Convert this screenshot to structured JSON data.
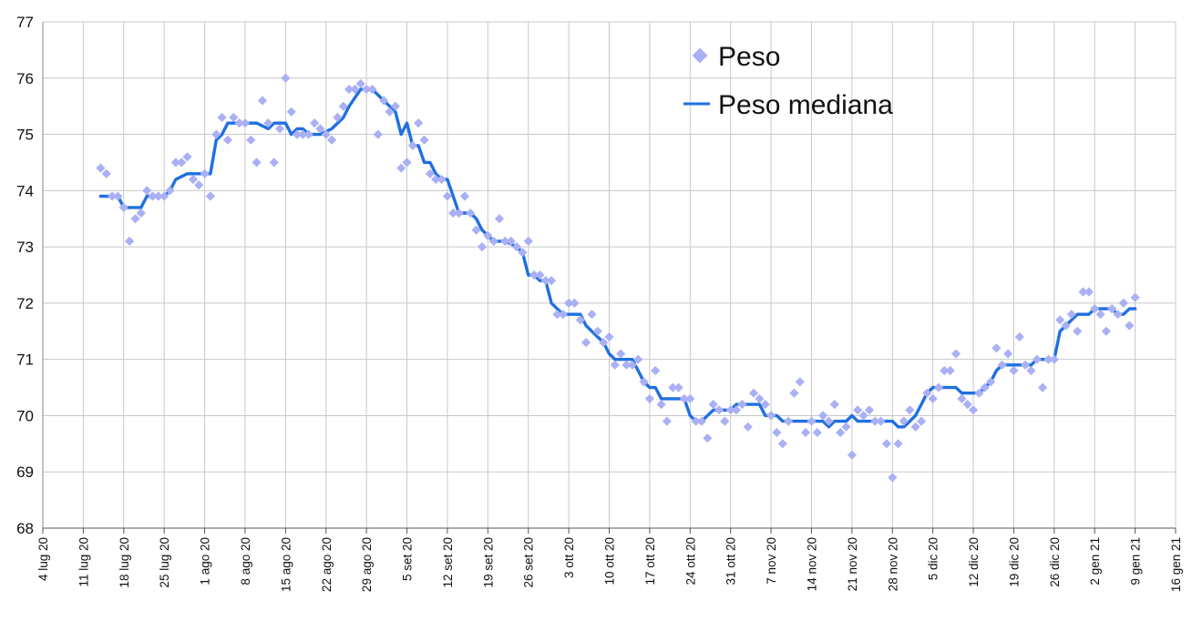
{
  "chart_data": {
    "type": "scatter",
    "title": "",
    "xlabel": "",
    "ylabel": "",
    "ylim": [
      68,
      77
    ],
    "y_ticks": [
      "68",
      "69",
      "70",
      "71",
      "72",
      "73",
      "74",
      "75",
      "76",
      "77"
    ],
    "x_range": [
      "2020-07-04",
      "2021-01-16"
    ],
    "x_ticks": [
      "4 lug 20",
      "11 lug 20",
      "18 lug 20",
      "25 lug 20",
      "1 ago 20",
      "8 ago 20",
      "15 ago 20",
      "22 ago 20",
      "29 ago 20",
      "5 set 20",
      "12 set 20",
      "19 set 20",
      "26 set 20",
      "3 ott 20",
      "10 ott 20",
      "17 ott 20",
      "24 ott 20",
      "31 ott 20",
      "7 nov 20",
      "14 nov 20",
      "21 nov 20",
      "28 nov 20",
      "5 dic 20",
      "12 dic 20",
      "19 dic 20",
      "26 dic 20",
      "2 gen 21",
      "9 gen 21",
      "16 gen 21"
    ],
    "grid": true,
    "legend_position": "top-right",
    "colors": {
      "scatter": "#aab0f4",
      "line": "#1f6fe0",
      "grid": "#c8c8c8"
    },
    "series": [
      {
        "name": "Peso",
        "kind": "scatter",
        "x": [
          "2020-07-14",
          "2020-07-15",
          "2020-07-16",
          "2020-07-17",
          "2020-07-18",
          "2020-07-19",
          "2020-07-20",
          "2020-07-21",
          "2020-07-22",
          "2020-07-23",
          "2020-07-24",
          "2020-07-25",
          "2020-07-26",
          "2020-07-27",
          "2020-07-28",
          "2020-07-29",
          "2020-07-30",
          "2020-07-31",
          "2020-08-01",
          "2020-08-02",
          "2020-08-03",
          "2020-08-04",
          "2020-08-05",
          "2020-08-06",
          "2020-08-07",
          "2020-08-08",
          "2020-08-09",
          "2020-08-10",
          "2020-08-11",
          "2020-08-12",
          "2020-08-13",
          "2020-08-14",
          "2020-08-15",
          "2020-08-16",
          "2020-08-17",
          "2020-08-18",
          "2020-08-19",
          "2020-08-20",
          "2020-08-21",
          "2020-08-22",
          "2020-08-23",
          "2020-08-24",
          "2020-08-25",
          "2020-08-26",
          "2020-08-27",
          "2020-08-28",
          "2020-08-29",
          "2020-08-30",
          "2020-08-31",
          "2020-09-01",
          "2020-09-02",
          "2020-09-03",
          "2020-09-04",
          "2020-09-05",
          "2020-09-06",
          "2020-09-07",
          "2020-09-08",
          "2020-09-09",
          "2020-09-10",
          "2020-09-11",
          "2020-09-12",
          "2020-09-13",
          "2020-09-14",
          "2020-09-15",
          "2020-09-16",
          "2020-09-17",
          "2020-09-18",
          "2020-09-19",
          "2020-09-20",
          "2020-09-21",
          "2020-09-22",
          "2020-09-23",
          "2020-09-24",
          "2020-09-25",
          "2020-09-26",
          "2020-09-27",
          "2020-09-28",
          "2020-09-29",
          "2020-09-30",
          "2020-10-01",
          "2020-10-02",
          "2020-10-03",
          "2020-10-04",
          "2020-10-05",
          "2020-10-06",
          "2020-10-07",
          "2020-10-08",
          "2020-10-09",
          "2020-10-10",
          "2020-10-11",
          "2020-10-12",
          "2020-10-13",
          "2020-10-14",
          "2020-10-15",
          "2020-10-16",
          "2020-10-17",
          "2020-10-18",
          "2020-10-19",
          "2020-10-20",
          "2020-10-21",
          "2020-10-22",
          "2020-10-23",
          "2020-10-24",
          "2020-10-25",
          "2020-10-26",
          "2020-10-27",
          "2020-10-28",
          "2020-10-29",
          "2020-10-30",
          "2020-10-31",
          "2020-11-01",
          "2020-11-02",
          "2020-11-03",
          "2020-11-04",
          "2020-11-05",
          "2020-11-06",
          "2020-11-07",
          "2020-11-08",
          "2020-11-09",
          "2020-11-10",
          "2020-11-11",
          "2020-11-12",
          "2020-11-13",
          "2020-11-14",
          "2020-11-15",
          "2020-11-16",
          "2020-11-17",
          "2020-11-18",
          "2020-11-19",
          "2020-11-20",
          "2020-11-21",
          "2020-11-22",
          "2020-11-23",
          "2020-11-24",
          "2020-11-25",
          "2020-11-26",
          "2020-11-27",
          "2020-11-28",
          "2020-11-29",
          "2020-11-30",
          "2020-12-01",
          "2020-12-02",
          "2020-12-03",
          "2020-12-04",
          "2020-12-05",
          "2020-12-06",
          "2020-12-07",
          "2020-12-08",
          "2020-12-09",
          "2020-12-10",
          "2020-12-11",
          "2020-12-12",
          "2020-12-13",
          "2020-12-14",
          "2020-12-15",
          "2020-12-16",
          "2020-12-17",
          "2020-12-18",
          "2020-12-19",
          "2020-12-20",
          "2020-12-21",
          "2020-12-22",
          "2020-12-23",
          "2020-12-24",
          "2020-12-25",
          "2020-12-26",
          "2020-12-27",
          "2020-12-28",
          "2020-12-29",
          "2020-12-30",
          "2020-12-31",
          "2021-01-01",
          "2021-01-02",
          "2021-01-03",
          "2021-01-04",
          "2021-01-05",
          "2021-01-06",
          "2021-01-07",
          "2021-01-08",
          "2021-01-09"
        ],
        "y": [
          74.4,
          74.3,
          73.9,
          73.9,
          73.7,
          73.1,
          73.5,
          73.6,
          74.0,
          73.9,
          73.9,
          73.9,
          74.0,
          74.5,
          74.5,
          74.6,
          74.2,
          74.1,
          74.3,
          73.9,
          75.0,
          75.3,
          74.9,
          75.3,
          75.2,
          75.2,
          74.9,
          74.5,
          75.6,
          75.2,
          74.5,
          75.1,
          76.0,
          75.4,
          75.0,
          75.0,
          75.0,
          75.2,
          75.1,
          75.0,
          74.9,
          75.3,
          75.5,
          75.8,
          75.8,
          75.9,
          75.8,
          75.8,
          75.0,
          75.6,
          75.4,
          75.5,
          74.4,
          74.5,
          74.8,
          75.2,
          74.9,
          74.3,
          74.2,
          74.2,
          73.9,
          73.6,
          73.6,
          73.9,
          73.6,
          73.3,
          73.0,
          73.2,
          73.1,
          73.5,
          73.1,
          73.1,
          73.0,
          72.9,
          73.1,
          72.5,
          72.5,
          72.4,
          72.4,
          71.8,
          71.8,
          72.0,
          72.0,
          71.7,
          71.3,
          71.8,
          71.5,
          71.3,
          71.4,
          70.9,
          71.1,
          70.9,
          70.9,
          71.0,
          70.6,
          70.3,
          70.8,
          70.2,
          69.9,
          70.5,
          70.5,
          70.3,
          70.3,
          69.9,
          69.9,
          69.6,
          70.2,
          70.1,
          69.9,
          70.1,
          70.1,
          70.2,
          69.8,
          70.4,
          70.3,
          70.2,
          70.0,
          69.7,
          69.5,
          69.9,
          70.4,
          70.6,
          69.7,
          69.9,
          69.7,
          70.0,
          69.9,
          70.2,
          69.7,
          69.8,
          69.3,
          70.1,
          70.0,
          70.1,
          69.9,
          69.9,
          69.5,
          68.9,
          69.5,
          69.9,
          70.1,
          69.8,
          69.9,
          70.4,
          70.3,
          70.5,
          70.8,
          70.8,
          71.1,
          70.3,
          70.2,
          70.1,
          70.4,
          70.5,
          70.6,
          71.2,
          70.9,
          71.1,
          70.8,
          71.4,
          70.9,
          70.8,
          71.0,
          70.5,
          71.0,
          71.0,
          71.7,
          71.6,
          71.8,
          71.5,
          72.2,
          72.2,
          71.9,
          71.8,
          71.5,
          71.9,
          71.8,
          72.0,
          71.6,
          72.1
        ]
      },
      {
        "name": "Peso mediana",
        "kind": "line",
        "x": [
          "2020-07-14",
          "2020-07-16",
          "2020-07-17",
          "2020-07-18",
          "2020-07-21",
          "2020-07-22",
          "2020-07-25",
          "2020-07-26",
          "2020-07-27",
          "2020-07-29",
          "2020-07-31",
          "2020-08-01",
          "2020-08-02",
          "2020-08-03",
          "2020-08-04",
          "2020-08-05",
          "2020-08-07",
          "2020-08-10",
          "2020-08-12",
          "2020-08-13",
          "2020-08-15",
          "2020-08-16",
          "2020-08-17",
          "2020-08-18",
          "2020-08-19",
          "2020-08-21",
          "2020-08-23",
          "2020-08-25",
          "2020-08-26",
          "2020-08-28",
          "2020-08-29",
          "2020-08-30",
          "2020-09-02",
          "2020-09-03",
          "2020-09-04",
          "2020-09-05",
          "2020-09-06",
          "2020-09-07",
          "2020-09-08",
          "2020-09-09",
          "2020-09-10",
          "2020-09-11",
          "2020-09-12",
          "2020-09-13",
          "2020-09-14",
          "2020-09-16",
          "2020-09-17",
          "2020-09-18",
          "2020-09-20",
          "2020-09-22",
          "2020-09-24",
          "2020-09-25",
          "2020-09-26",
          "2020-09-27",
          "2020-09-28",
          "2020-09-29",
          "2020-09-30",
          "2020-10-01",
          "2020-10-02",
          "2020-10-04",
          "2020-10-05",
          "2020-10-06",
          "2020-10-08",
          "2020-10-09",
          "2020-10-10",
          "2020-10-11",
          "2020-10-14",
          "2020-10-15",
          "2020-10-16",
          "2020-10-17",
          "2020-10-18",
          "2020-10-19",
          "2020-10-21",
          "2020-10-22",
          "2020-10-23",
          "2020-10-24",
          "2020-10-25",
          "2020-10-26",
          "2020-10-27",
          "2020-10-28",
          "2020-10-29",
          "2020-10-30",
          "2020-10-31",
          "2020-11-01",
          "2020-11-02",
          "2020-11-05",
          "2020-11-06",
          "2020-11-07",
          "2020-11-08",
          "2020-11-09",
          "2020-11-11",
          "2020-11-14",
          "2020-11-16",
          "2020-11-17",
          "2020-11-18",
          "2020-11-20",
          "2020-11-21",
          "2020-11-22",
          "2020-11-25",
          "2020-11-27",
          "2020-11-28",
          "2020-11-29",
          "2020-11-30",
          "2020-12-01",
          "2020-12-02",
          "2020-12-03",
          "2020-12-04",
          "2020-12-05",
          "2020-12-06",
          "2020-12-09",
          "2020-12-10",
          "2020-12-12",
          "2020-12-13",
          "2020-12-14",
          "2020-12-15",
          "2020-12-16",
          "2020-12-17",
          "2020-12-18",
          "2020-12-20",
          "2020-12-22",
          "2020-12-23",
          "2020-12-25",
          "2020-12-26",
          "2020-12-27",
          "2020-12-28",
          "2020-12-29",
          "2020-12-30",
          "2021-01-01",
          "2021-01-02",
          "2021-01-03",
          "2021-01-05",
          "2021-01-06",
          "2021-01-07",
          "2021-01-08",
          "2021-01-09"
        ],
        "y": [
          73.9,
          73.9,
          73.9,
          73.7,
          73.7,
          73.9,
          73.9,
          74.0,
          74.2,
          74.3,
          74.3,
          74.3,
          74.3,
          74.9,
          75.0,
          75.2,
          75.2,
          75.2,
          75.1,
          75.2,
          75.2,
          75.0,
          75.1,
          75.1,
          75.0,
          75.0,
          75.1,
          75.3,
          75.5,
          75.8,
          75.8,
          75.8,
          75.5,
          75.4,
          75.0,
          75.2,
          74.8,
          74.8,
          74.5,
          74.5,
          74.3,
          74.2,
          74.2,
          73.9,
          73.6,
          73.6,
          73.5,
          73.3,
          73.1,
          73.1,
          73.0,
          72.9,
          72.5,
          72.5,
          72.4,
          72.4,
          72.0,
          71.9,
          71.8,
          71.8,
          71.8,
          71.6,
          71.4,
          71.3,
          71.1,
          71.0,
          71.0,
          70.8,
          70.6,
          70.5,
          70.5,
          70.3,
          70.3,
          70.3,
          70.3,
          70.0,
          69.9,
          69.9,
          70.0,
          70.1,
          70.1,
          70.1,
          70.1,
          70.2,
          70.2,
          70.2,
          70.0,
          70.0,
          70.0,
          69.9,
          69.9,
          69.9,
          69.9,
          69.8,
          69.9,
          69.9,
          70.0,
          69.9,
          69.9,
          69.9,
          69.9,
          69.8,
          69.8,
          69.9,
          70.0,
          70.2,
          70.4,
          70.5,
          70.5,
          70.5,
          70.4,
          70.4,
          70.4,
          70.5,
          70.6,
          70.8,
          70.9,
          70.9,
          70.9,
          70.9,
          71.0,
          71.0,
          71.0,
          71.5,
          71.6,
          71.7,
          71.8,
          71.8,
          71.9,
          71.9,
          71.9,
          71.8,
          71.8,
          71.9,
          71.9
        ]
      }
    ]
  }
}
